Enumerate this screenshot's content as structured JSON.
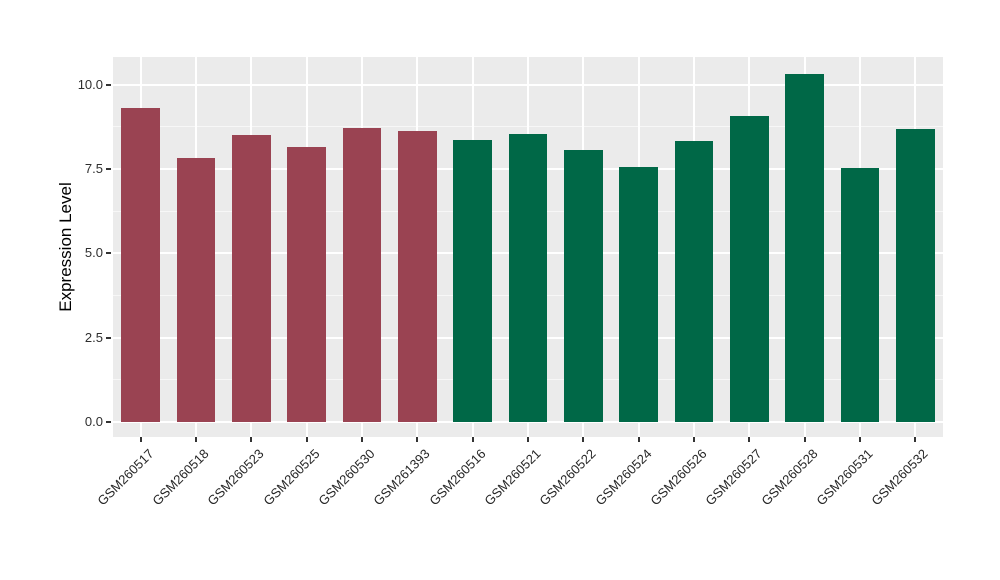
{
  "chart_data": {
    "type": "bar",
    "title": "",
    "xlabel": "",
    "ylabel": "Expression Level",
    "categories": [
      "GSM260517",
      "GSM260518",
      "GSM260523",
      "GSM260525",
      "GSM260530",
      "GSM261393",
      "GSM260516",
      "GSM260521",
      "GSM260522",
      "GSM260524",
      "GSM260526",
      "GSM260527",
      "GSM260528",
      "GSM260531",
      "GSM260532"
    ],
    "values": [
      9.32,
      7.83,
      8.51,
      8.16,
      8.72,
      8.63,
      8.35,
      8.53,
      8.07,
      7.55,
      8.33,
      9.07,
      10.31,
      7.54,
      8.69
    ],
    "bar_colors": [
      "#9A4352",
      "#9A4352",
      "#9A4352",
      "#9A4352",
      "#9A4352",
      "#9A4352",
      "#006847",
      "#006847",
      "#006847",
      "#006847",
      "#006847",
      "#006847",
      "#006847",
      "#006847",
      "#006847"
    ],
    "yticks": [
      0.0,
      2.5,
      5.0,
      7.5,
      10.0
    ],
    "ytick_labels": [
      "0.0",
      "2.5",
      "5.0",
      "7.5",
      "10.0"
    ],
    "yticks_minor": [
      1.25,
      3.75,
      6.25,
      8.75
    ],
    "ylim": [
      -0.45,
      10.82
    ],
    "bar_width_fraction": 0.7,
    "grid": "major-and-minor",
    "legend": "none"
  },
  "colors": {
    "panel_background": "#EBEBEB",
    "grid_major": "#FFFFFF",
    "grid_minor": "#F5F5F5",
    "tick_mark": "#333333",
    "axis_text": "#262626",
    "figure_background": "#FFFFFF",
    "group1_bar": "#9A4352",
    "group2_bar": "#006847"
  }
}
